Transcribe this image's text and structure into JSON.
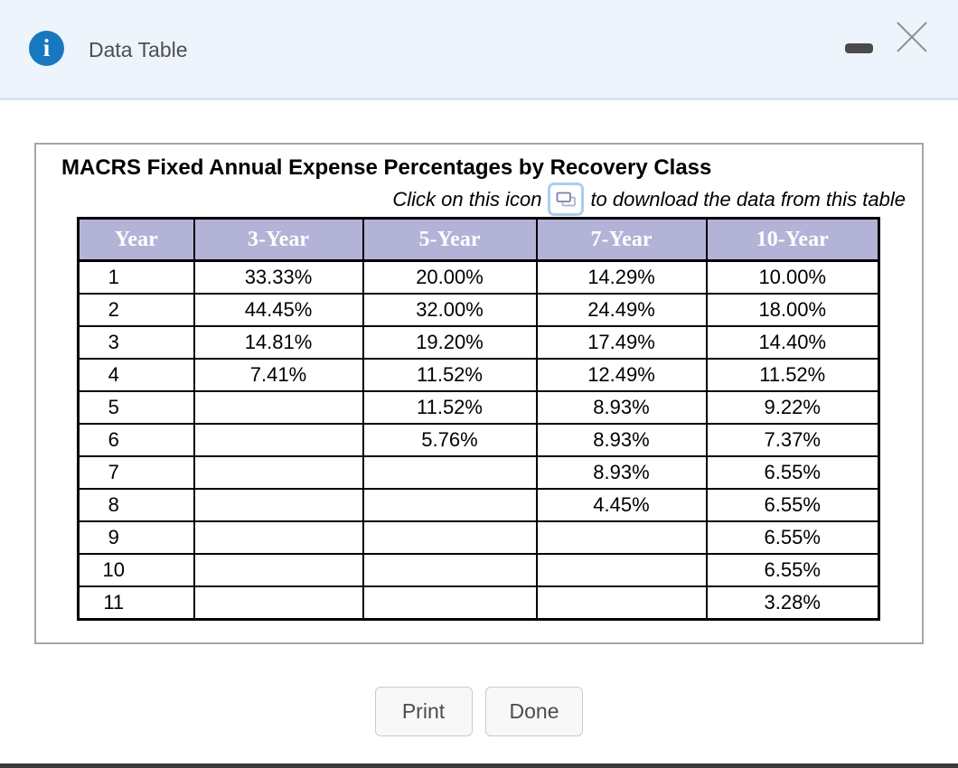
{
  "window": {
    "title": "Data Table"
  },
  "panel": {
    "title": "MACRS Fixed Annual Expense Percentages by Recovery Class",
    "subtitle_before_icon": "Click on this icon",
    "subtitle_after_icon": "to download the data from this table"
  },
  "table": {
    "columns": [
      "Year",
      "3-Year",
      "5-Year",
      "7-Year",
      "10-Year"
    ],
    "rows": [
      [
        "1",
        "33.33%",
        "20.00%",
        "14.29%",
        "10.00%"
      ],
      [
        "2",
        "44.45%",
        "32.00%",
        "24.49%",
        "18.00%"
      ],
      [
        "3",
        "14.81%",
        "19.20%",
        "17.49%",
        "14.40%"
      ],
      [
        "4",
        "7.41%",
        "11.52%",
        "12.49%",
        "11.52%"
      ],
      [
        "5",
        "",
        "11.52%",
        "8.93%",
        "9.22%"
      ],
      [
        "6",
        "",
        "5.76%",
        "8.93%",
        "7.37%"
      ],
      [
        "7",
        "",
        "",
        "8.93%",
        "6.55%"
      ],
      [
        "8",
        "",
        "",
        "4.45%",
        "6.55%"
      ],
      [
        "9",
        "",
        "",
        "",
        "6.55%"
      ],
      [
        "10",
        "",
        "",
        "",
        "6.55%"
      ],
      [
        "11",
        "",
        "",
        "",
        "3.28%"
      ]
    ]
  },
  "buttons": {
    "print": "Print",
    "done": "Done"
  },
  "icons": {
    "info": "info-icon",
    "minimize": "minimize-icon",
    "close": "close-icon",
    "download": "copy-download-icon"
  },
  "colors": {
    "titlebar_bg": "#eef4fb",
    "titlebar_border": "#d6e5f3",
    "info_blue": "#1878bf",
    "table_header_bg": "#b3b3d8",
    "table_border": "#000000",
    "download_icon_border": "#abcdee",
    "card_border": "#a6a6a6",
    "button_border": "#cbcbcb"
  }
}
